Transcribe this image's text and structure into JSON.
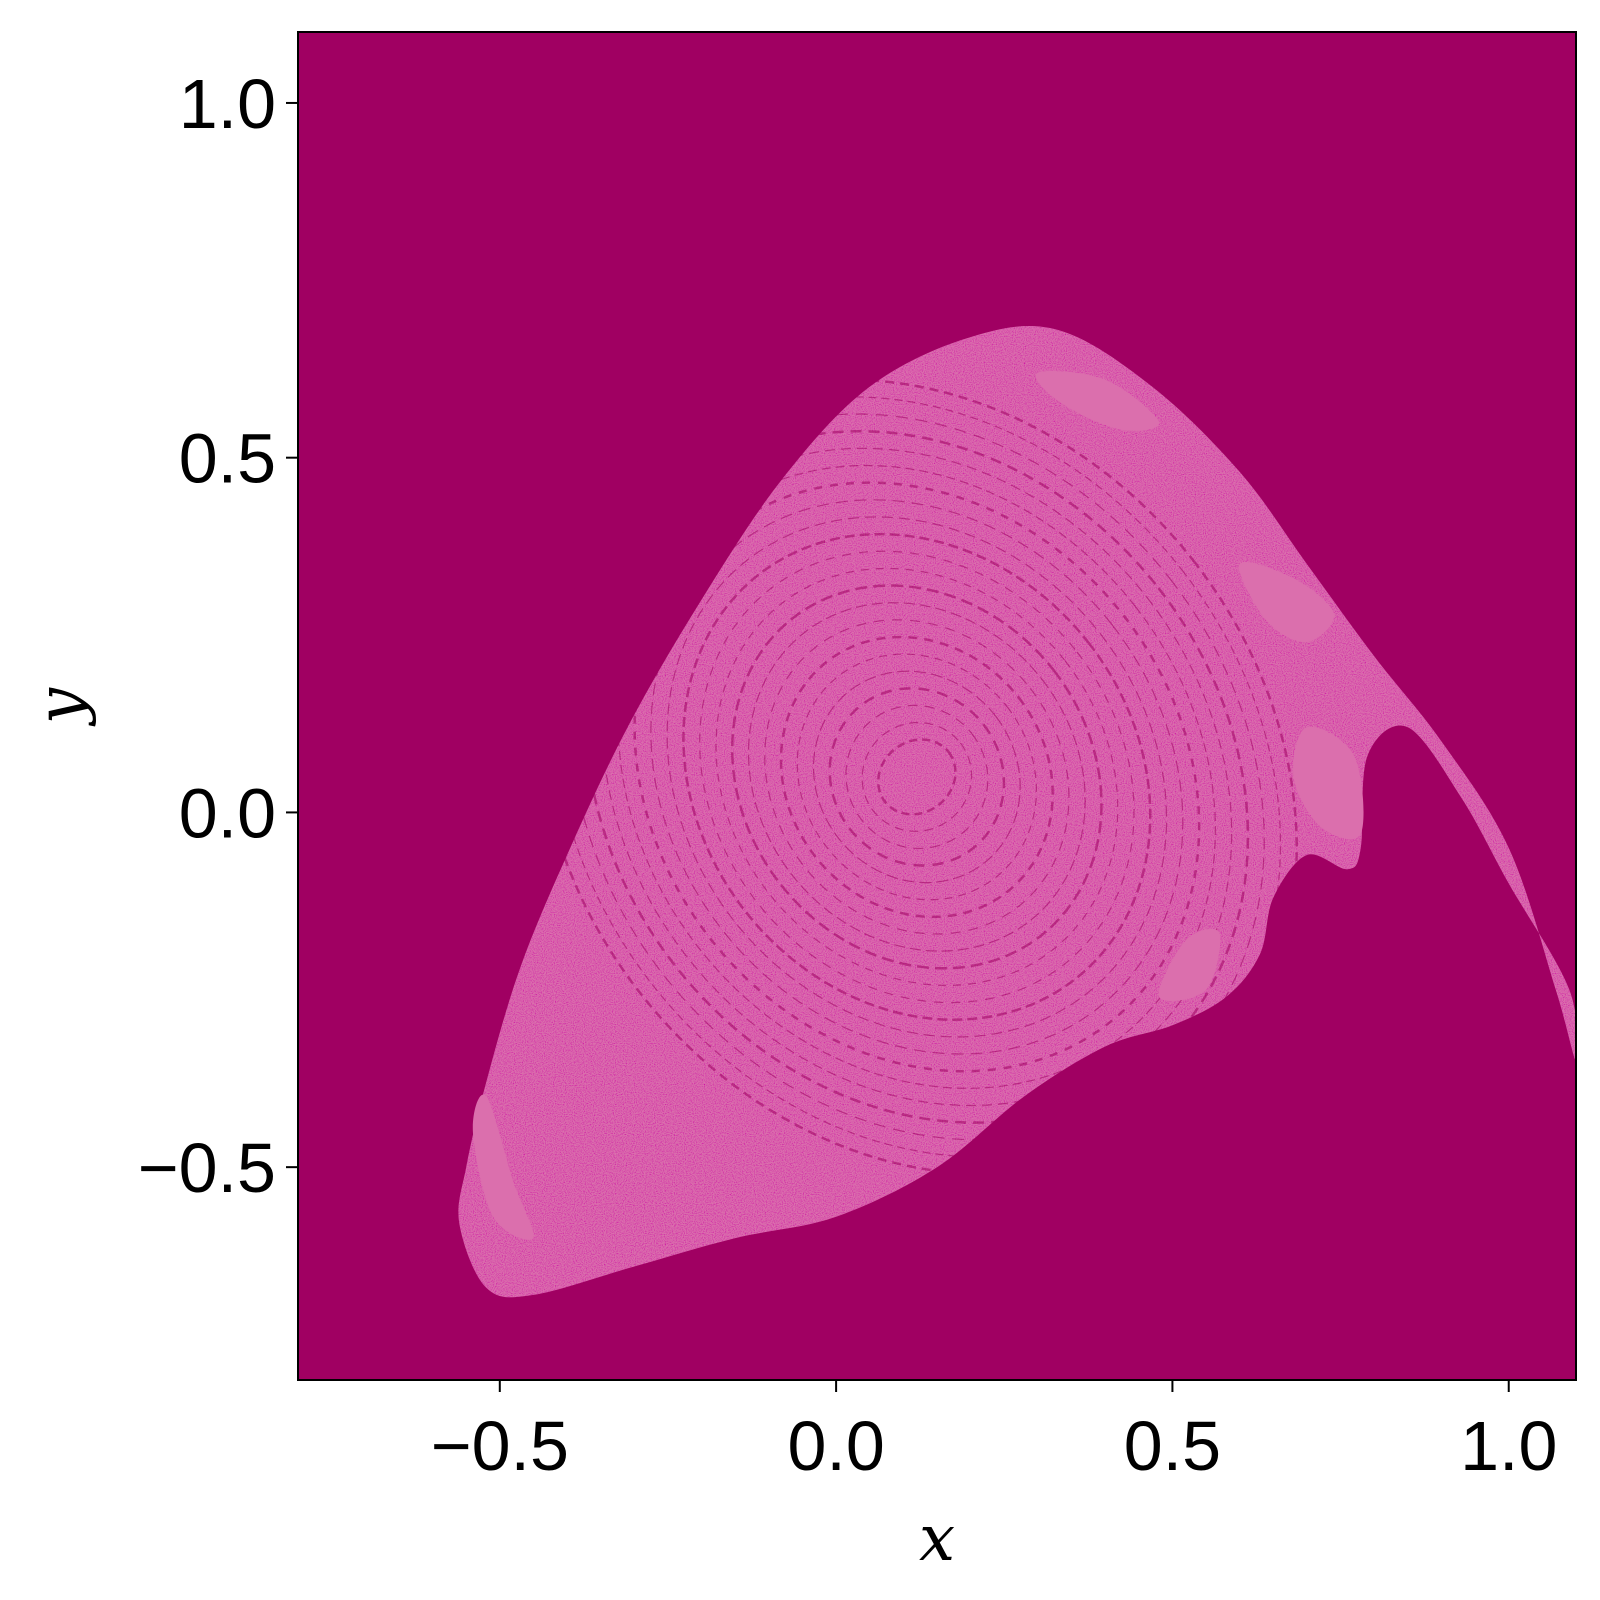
{
  "chart_data": {
    "type": "heatmap",
    "title": "",
    "xlabel": "x",
    "ylabel": "y",
    "xlim": [
      -0.8,
      1.1
    ],
    "ylim": [
      -0.8,
      1.1
    ],
    "xticks": [
      -0.5,
      0.0,
      0.5,
      1.0
    ],
    "xtick_labels": [
      "−0.5",
      "0.0",
      "0.5",
      "1.0"
    ],
    "yticks": [
      -0.5,
      0.0,
      0.5,
      1.0
    ],
    "ytick_labels": [
      "−0.5",
      "0.0",
      "0.5",
      "1.0"
    ],
    "grid": false,
    "legend": "none",
    "colors": {
      "background_basin": "#a00062",
      "attractor_basin": "#db6fad",
      "minor_basin": "#ffb300"
    },
    "basin_outline": [
      [
        -0.56,
        -0.58
      ],
      [
        -0.55,
        -0.5
      ],
      [
        -0.52,
        -0.38
      ],
      [
        -0.47,
        -0.22
      ],
      [
        -0.4,
        -0.06
      ],
      [
        -0.31,
        0.12
      ],
      [
        -0.2,
        0.3
      ],
      [
        -0.08,
        0.47
      ],
      [
        0.05,
        0.6
      ],
      [
        0.2,
        0.67
      ],
      [
        0.33,
        0.68
      ],
      [
        0.47,
        0.6
      ],
      [
        0.6,
        0.48
      ],
      [
        0.7,
        0.35
      ],
      [
        0.8,
        0.22
      ],
      [
        0.9,
        0.1
      ],
      [
        1.0,
        -0.05
      ],
      [
        1.07,
        -0.25
      ],
      [
        1.1,
        -0.35
      ],
      [
        1.09,
        -0.25
      ],
      [
        1.0,
        -0.1
      ],
      [
        0.93,
        0.02
      ],
      [
        0.85,
        0.12
      ],
      [
        0.79,
        0.08
      ],
      [
        0.78,
        -0.05
      ],
      [
        0.76,
        -0.08
      ],
      [
        0.7,
        -0.06
      ],
      [
        0.65,
        -0.12
      ],
      [
        0.63,
        -0.2
      ],
      [
        0.58,
        -0.26
      ],
      [
        0.5,
        -0.3
      ],
      [
        0.4,
        -0.33
      ],
      [
        0.28,
        -0.4
      ],
      [
        0.15,
        -0.5
      ],
      [
        0.0,
        -0.57
      ],
      [
        -0.15,
        -0.6
      ],
      [
        -0.3,
        -0.64
      ],
      [
        -0.45,
        -0.68
      ],
      [
        -0.52,
        -0.67
      ]
    ],
    "inner_pockets": [
      [
        [
          0.6,
          0.35
        ],
        [
          0.68,
          0.33
        ],
        [
          0.74,
          0.28
        ],
        [
          0.7,
          0.24
        ],
        [
          0.64,
          0.27
        ]
      ],
      [
        [
          0.7,
          0.12
        ],
        [
          0.77,
          0.08
        ],
        [
          0.78,
          -0.03
        ],
        [
          0.72,
          -0.02
        ],
        [
          0.68,
          0.05
        ]
      ],
      [
        [
          0.3,
          0.62
        ],
        [
          0.4,
          0.61
        ],
        [
          0.48,
          0.55
        ],
        [
          0.42,
          0.54
        ],
        [
          0.33,
          0.58
        ]
      ],
      [
        [
          -0.54,
          -0.45
        ],
        [
          -0.51,
          -0.57
        ],
        [
          -0.45,
          -0.6
        ],
        [
          -0.48,
          -0.52
        ],
        [
          -0.52,
          -0.4
        ]
      ],
      [
        [
          0.52,
          -0.18
        ],
        [
          0.57,
          -0.17
        ],
        [
          0.55,
          -0.25
        ],
        [
          0.48,
          -0.26
        ]
      ]
    ]
  }
}
